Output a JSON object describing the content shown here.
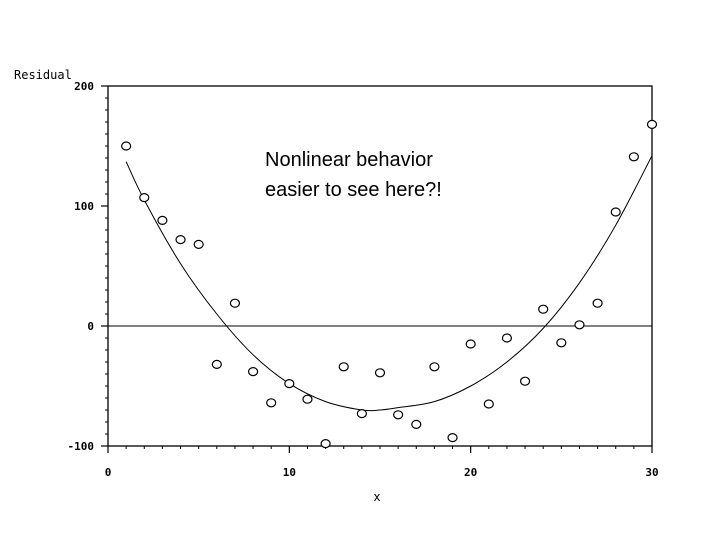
{
  "chart_data": {
    "type": "scatter",
    "title": "",
    "xlabel": "x",
    "ylabel": "Residual",
    "xlim": [
      0,
      30
    ],
    "ylim": [
      -100,
      200
    ],
    "x_ticks": [
      0,
      10,
      20,
      30
    ],
    "y_ticks": [
      -100,
      0,
      100,
      200
    ],
    "x_tick_labels": [
      "0",
      "10",
      "20",
      "30"
    ],
    "y_tick_labels": [
      "-100",
      "0",
      "100",
      "200"
    ],
    "grid": false,
    "reference_line_y": 0,
    "annotation": [
      "Nonlinear behavior",
      "easier to see here?!"
    ],
    "points": {
      "x": [
        1,
        2,
        3,
        4,
        5,
        6,
        7,
        8,
        9,
        10,
        11,
        12,
        13,
        14,
        15,
        16,
        17,
        18,
        19,
        20,
        21,
        22,
        23,
        24,
        25,
        26,
        27,
        28,
        29,
        30
      ],
      "y": [
        150,
        107,
        88,
        72,
        68,
        -32,
        19,
        -38,
        -64,
        -48,
        -61,
        -98,
        -34,
        -73,
        -39,
        -74,
        -82,
        -34,
        -93,
        -15,
        -65,
        -10,
        -46,
        14,
        -14,
        1,
        19,
        95,
        141,
        168
      ]
    },
    "fit": {
      "x": [
        1,
        2,
        4,
        6,
        8,
        10,
        12,
        14,
        15,
        16,
        18,
        20,
        22,
        24,
        26,
        28,
        30
      ],
      "y": [
        137,
        105,
        52,
        10,
        -24,
        -48,
        -63,
        -70,
        -70,
        -68,
        -63,
        -50,
        -30,
        -2,
        36,
        84,
        142
      ]
    }
  }
}
